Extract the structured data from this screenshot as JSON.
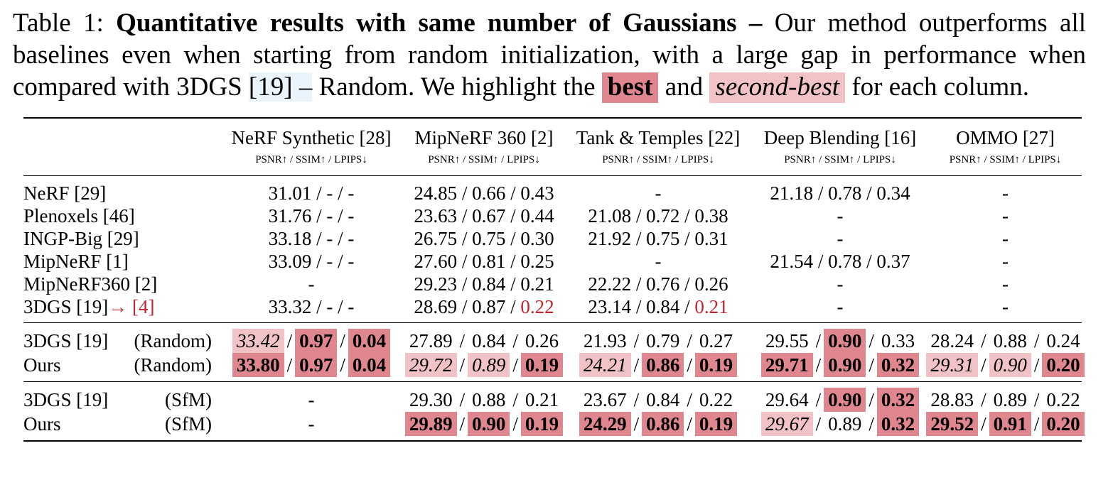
{
  "caption": {
    "label": "Table 1:",
    "bold_title": "Quantitative results with same number of Gaussians –",
    "text_a": " Our method outperforms all baselines even when starting from random initialization, with a large gap in performance when compared with 3DGS ",
    "cite": "[19] –",
    "text_b": " Random. We highlight the ",
    "best": "best",
    "text_c": " and ",
    "second": "second-best",
    "text_d": " for each column."
  },
  "columns": [
    {
      "name": "NeRF Synthetic [28]",
      "metrics": "PSNR↑ / SSIM↑ / LPIPS↓"
    },
    {
      "name": "MipNeRF 360 [2]",
      "metrics": "PSNR↑ / SSIM↑ / LPIPS↓"
    },
    {
      "name": "Tank & Temples [22]",
      "metrics": "PSNR↑ / SSIM↑ / LPIPS↓"
    },
    {
      "name": "Deep Blending [16]",
      "metrics": "PSNR↑ / SSIM↑ / LPIPS↓"
    },
    {
      "name": "OMMO [27]",
      "metrics": "PSNR↑ / SSIM↑ / LPIPS↓"
    }
  ],
  "rows_baselines": [
    {
      "method": "NeRF [29]",
      "cells": [
        "31.01 / - / -",
        "24.85 / 0.66 / 0.43",
        "-",
        "21.18 / 0.78 / 0.34",
        "-"
      ]
    },
    {
      "method": "Plenoxels [46]",
      "cells": [
        "31.76 / - / -",
        "23.63 / 0.67 / 0.44",
        "21.08 / 0.72 / 0.38",
        "-",
        "-"
      ]
    },
    {
      "method": "INGP-Big [29]",
      "cells": [
        "33.18 / - / -",
        "26.75 / 0.75 / 0.30",
        "21.92 / 0.75 / 0.31",
        "-",
        "-"
      ]
    },
    {
      "method": "MipNeRF [1]",
      "cells": [
        "33.09 / - / -",
        "27.60 / 0.81 / 0.25",
        "-",
        "21.54 / 0.78 / 0.37",
        "-"
      ]
    },
    {
      "method": "MipNeRF360 [2]",
      "cells": [
        "-",
        "29.23 / 0.84 / 0.21",
        "22.22 / 0.76 / 0.26",
        "-",
        "-"
      ]
    },
    {
      "method": "3DGS [19]",
      "method_arrow": "→ [4]",
      "cells": [
        "33.32 / - / -",
        "28.69 / 0.87 / ",
        "23.14 / 0.84 / ",
        "-",
        "-"
      ],
      "red_tail": [
        "",
        "0.22",
        "0.21",
        "",
        ""
      ]
    }
  ],
  "rows_random": [
    {
      "method": "3DGS [19]",
      "sub": "(Random)",
      "cells": [
        [
          {
            "v": "33.42",
            "s": "second"
          },
          {
            "v": "0.97",
            "s": "best"
          },
          {
            "v": "0.04",
            "s": "best"
          }
        ],
        [
          {
            "v": "27.89",
            "s": ""
          },
          {
            "v": "0.84",
            "s": ""
          },
          {
            "v": "0.26",
            "s": ""
          }
        ],
        [
          {
            "v": "21.93",
            "s": ""
          },
          {
            "v": "0.79",
            "s": ""
          },
          {
            "v": "0.27",
            "s": ""
          }
        ],
        [
          {
            "v": "29.55",
            "s": ""
          },
          {
            "v": "0.90",
            "s": "best"
          },
          {
            "v": "0.33",
            "s": ""
          }
        ],
        [
          {
            "v": "28.24",
            "s": ""
          },
          {
            "v": "0.88",
            "s": ""
          },
          {
            "v": "0.24",
            "s": ""
          }
        ]
      ]
    },
    {
      "method": "Ours",
      "sub": "(Random)",
      "cells": [
        [
          {
            "v": "33.80",
            "s": "best"
          },
          {
            "v": "0.97",
            "s": "best"
          },
          {
            "v": "0.04",
            "s": "best"
          }
        ],
        [
          {
            "v": "29.72",
            "s": "second"
          },
          {
            "v": "0.89",
            "s": "second"
          },
          {
            "v": "0.19",
            "s": "best"
          }
        ],
        [
          {
            "v": "24.21",
            "s": "second"
          },
          {
            "v": "0.86",
            "s": "best"
          },
          {
            "v": "0.19",
            "s": "best"
          }
        ],
        [
          {
            "v": "29.71",
            "s": "best"
          },
          {
            "v": "0.90",
            "s": "best"
          },
          {
            "v": "0.32",
            "s": "best"
          }
        ],
        [
          {
            "v": "29.31",
            "s": "second"
          },
          {
            "v": "0.90",
            "s": "second"
          },
          {
            "v": "0.20",
            "s": "best"
          }
        ]
      ]
    }
  ],
  "rows_sfm": [
    {
      "method": "3DGS [19]",
      "sub": "(SfM)",
      "cells": [
        "-",
        [
          {
            "v": "29.30",
            "s": ""
          },
          {
            "v": "0.88",
            "s": ""
          },
          {
            "v": "0.21",
            "s": ""
          }
        ],
        [
          {
            "v": "23.67",
            "s": ""
          },
          {
            "v": "0.84",
            "s": ""
          },
          {
            "v": "0.22",
            "s": ""
          }
        ],
        [
          {
            "v": "29.64",
            "s": ""
          },
          {
            "v": "0.90",
            "s": "best"
          },
          {
            "v": "0.32",
            "s": "best"
          }
        ],
        [
          {
            "v": "28.83",
            "s": ""
          },
          {
            "v": "0.89",
            "s": ""
          },
          {
            "v": "0.22",
            "s": ""
          }
        ]
      ]
    },
    {
      "method": "Ours",
      "sub": "(SfM)",
      "cells": [
        "-",
        [
          {
            "v": "29.89",
            "s": "best"
          },
          {
            "v": "0.90",
            "s": "best"
          },
          {
            "v": "0.19",
            "s": "best"
          }
        ],
        [
          {
            "v": "24.29",
            "s": "best"
          },
          {
            "v": "0.86",
            "s": "best"
          },
          {
            "v": "0.19",
            "s": "best"
          }
        ],
        [
          {
            "v": "29.67",
            "s": "second"
          },
          {
            "v": "0.89",
            "s": ""
          },
          {
            "v": "0.32",
            "s": "best"
          }
        ],
        [
          {
            "v": "29.52",
            "s": "best"
          },
          {
            "v": "0.91",
            "s": "best"
          },
          {
            "v": "0.20",
            "s": "best"
          }
        ]
      ]
    }
  ]
}
